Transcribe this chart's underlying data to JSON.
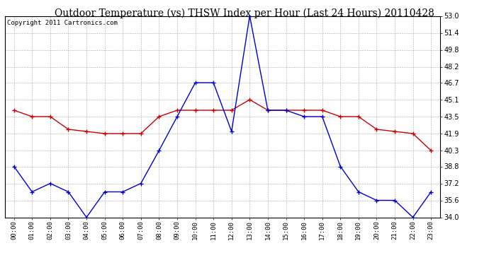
{
  "title": "Outdoor Temperature (vs) THSW Index per Hour (Last 24 Hours) 20110428",
  "copyright": "Copyright 2011 Cartronics.com",
  "x_labels": [
    "00:00",
    "01:00",
    "02:00",
    "03:00",
    "04:00",
    "05:00",
    "06:00",
    "07:00",
    "08:00",
    "09:00",
    "10:00",
    "11:00",
    "12:00",
    "13:00",
    "14:00",
    "15:00",
    "16:00",
    "17:00",
    "18:00",
    "19:00",
    "20:00",
    "21:00",
    "22:00",
    "23:00"
  ],
  "red_data": [
    44.1,
    43.5,
    43.5,
    42.3,
    42.1,
    41.9,
    41.9,
    41.9,
    43.5,
    44.1,
    44.1,
    44.1,
    44.1,
    45.1,
    44.1,
    44.1,
    44.1,
    44.1,
    43.5,
    43.5,
    42.3,
    42.1,
    41.9,
    40.3
  ],
  "blue_data": [
    38.8,
    36.4,
    37.2,
    36.4,
    34.0,
    36.4,
    36.4,
    37.2,
    40.3,
    43.5,
    46.7,
    46.7,
    42.1,
    53.0,
    44.1,
    44.1,
    43.5,
    43.5,
    38.8,
    36.4,
    35.6,
    35.6,
    34.0,
    36.4
  ],
  "ylim": [
    34.0,
    53.0
  ],
  "yticks": [
    34.0,
    35.6,
    37.2,
    38.8,
    40.3,
    41.9,
    43.5,
    45.1,
    46.7,
    48.2,
    49.8,
    51.4,
    53.0
  ],
  "red_color": "#cc0000",
  "blue_color": "#0000cc",
  "bg_color": "#ffffff",
  "grid_color": "#aaaaaa",
  "title_fontsize": 10,
  "copyright_fontsize": 6.5
}
